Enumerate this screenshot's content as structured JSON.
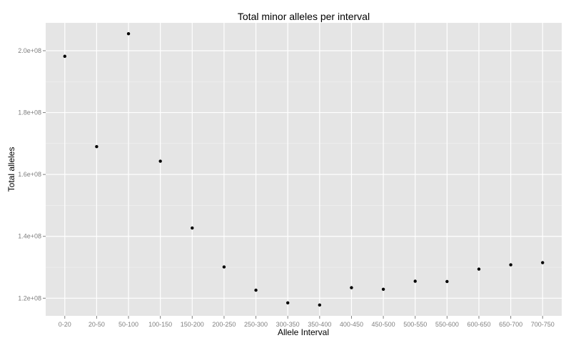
{
  "chart_data": {
    "type": "scatter",
    "title": "Total minor alleles per interval",
    "xlabel": "Allele Interval",
    "ylabel": "Total alleles",
    "categories": [
      "0-20",
      "20-50",
      "50-100",
      "100-150",
      "150-200",
      "200-250",
      "250-300",
      "300-350",
      "350-400",
      "400-450",
      "450-500",
      "500-550",
      "550-600",
      "600-650",
      "650-700",
      "700-750"
    ],
    "values": [
      198200000,
      169000000,
      205500000,
      164300000,
      142700000,
      130100000,
      122600000,
      118500000,
      117800000,
      123400000,
      122900000,
      125500000,
      125400000,
      129400000,
      130800000,
      131500000
    ],
    "y_ticks": [
      120000000,
      140000000,
      160000000,
      180000000,
      200000000
    ],
    "y_tick_labels": [
      "1.2e+08",
      "1.4e+08",
      "1.6e+08",
      "1.8e+08",
      "2.0e+08"
    ],
    "ylim": [
      114300000,
      209000000
    ],
    "grid": true,
    "colors": {
      "panel": "#e5e5e5",
      "grid_major": "#ffffff",
      "grid_minor": "#f2f2f2",
      "point": "#000000",
      "tick_text": "#7f7f7f"
    }
  }
}
